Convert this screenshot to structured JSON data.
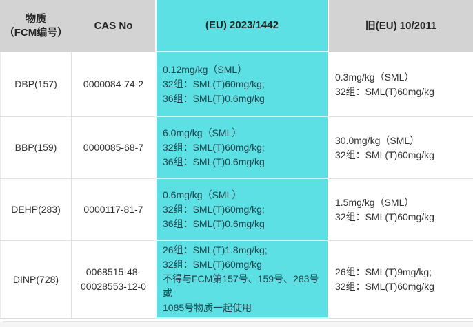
{
  "theme": {
    "highlight_color": "#5ce0e3",
    "header_bg": "#d3d3d3",
    "body_text": "#333333",
    "highlight_text": "#20434f",
    "border_color": "#e0e0e0",
    "page_bg": "#f4f4f4"
  },
  "table": {
    "headers": {
      "substance": "物质\n（FCM编号）",
      "cas": "CAS No",
      "new_reg": "(EU) 2023/1442",
      "old_reg": "旧(EU) 10/2011"
    },
    "rows": [
      {
        "substance": "DBP(157)",
        "cas": "0000084-74-2",
        "new_reg": "0.12mg/kg（SML）\n32组：SML(T)60mg/kg;\n36组：SML(T)0.6mg/kg",
        "old_reg": "0.3mg/kg（SML）\n32组：SML(T)60mg/kg"
      },
      {
        "substance": "BBP(159)",
        "cas": "0000085-68-7",
        "new_reg": "6.0mg/kg（SML）\n32组：SML(T)60mg/kg;\n36组：SML(T)0.6mg/kg",
        "old_reg": "30.0mg/kg（SML）\n32组：SML(T)60mg/kg"
      },
      {
        "substance": "DEHP(283)",
        "cas": "0000117-81-7",
        "new_reg": "0.6mg/kg（SML）\n32组：SML(T)60mg/kg;\n36组：SML(T)0.6mg/kg",
        "old_reg": "1.5mg/kg（SML）\n32组：SML(T)60mg/kg"
      },
      {
        "substance": "DINP(728)",
        "cas": "0068515-48-\n00028553-12-0",
        "new_reg": "26组：SML(T)1.8mg/kg;\n32组：SML(T)60mg/kg\n不得与FCM第157号、159号、283号或\n1085号物质一起使用",
        "old_reg": "26组：SML(T)9mg/kg;\n32组：SML(T)60mg/kg"
      }
    ]
  }
}
